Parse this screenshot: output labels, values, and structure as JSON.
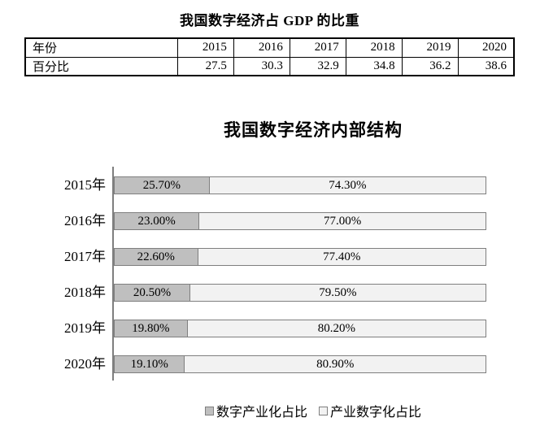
{
  "chart_data": [
    {
      "type": "table",
      "title": "我国数字经济占 GDP 的比重",
      "row_headers": [
        "年份",
        "百分比"
      ],
      "columns": [
        "2015",
        "2016",
        "2017",
        "2018",
        "2019",
        "2020"
      ],
      "values": [
        "27.5",
        "30.3",
        "32.9",
        "34.8",
        "36.2",
        "38.6"
      ],
      "border_color": "#000000"
    },
    {
      "type": "bar",
      "orientation": "horizontal",
      "stacked": true,
      "title": "我国数字经济内部结构",
      "categories": [
        "2015年",
        "2016年",
        "2017年",
        "2018年",
        "2019年",
        "2020年"
      ],
      "series": [
        {
          "name": "数字产业化占比",
          "values": [
            25.7,
            23.0,
            22.6,
            20.5,
            19.8,
            19.1
          ],
          "labels": [
            "25.70%",
            "23.00%",
            "22.60%",
            "20.50%",
            "19.80%",
            "19.10%"
          ],
          "fill": "#bfbfbf",
          "border": "#7f7f7f"
        },
        {
          "name": "产业数字化占比",
          "values": [
            74.3,
            77.0,
            77.4,
            79.5,
            80.2,
            80.9
          ],
          "labels": [
            "74.30%",
            "77.00%",
            "77.40%",
            "79.50%",
            "80.20%",
            "80.90%"
          ],
          "fill": "#f2f2f2",
          "border": "#7f7f7f"
        }
      ],
      "xlim": [
        0,
        100
      ],
      "grid": false,
      "legend_position": "bottom",
      "legend": [
        "数字产业化占比",
        "产业数字化占比"
      ],
      "axis_color": "#7f7f7f"
    }
  ]
}
